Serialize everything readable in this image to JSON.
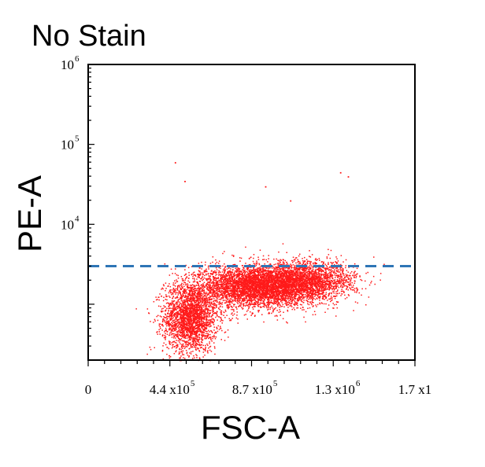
{
  "chart_data": {
    "type": "scatter",
    "title": "No Stain",
    "xlabel": "FSC-A",
    "ylabel": "PE-A",
    "xlim": [
      0,
      1700000
    ],
    "ylim": [
      200,
      1000000
    ],
    "yscale": "log",
    "x_ticks": [
      {
        "value": 0,
        "label": "0",
        "exp": ""
      },
      {
        "value": 440000,
        "label": "4.4 x10",
        "exp": "5"
      },
      {
        "value": 870000,
        "label": "8.7 x10",
        "exp": "5"
      },
      {
        "value": 1300000,
        "label": "1.3 x10",
        "exp": "6"
      },
      {
        "value": 1700000,
        "label": "1.7 x1",
        "exp": ""
      }
    ],
    "y_ticks": [
      {
        "value": 10000,
        "label": "10",
        "exp": "4"
      },
      {
        "value": 100000,
        "label": "10",
        "exp": "5"
      },
      {
        "value": 1000000,
        "label": "10",
        "exp": "6"
      }
    ],
    "threshold": {
      "y": 3000,
      "style": "dashed",
      "color": "#2e75b6"
    },
    "point_color": "#ff1a1a",
    "grid": false,
    "series": [
      {
        "point_count": 9000,
        "clusters": [
          {
            "x_center": 530000,
            "y_center": 700,
            "x_spread": 70000,
            "y_spread_log10": 0.22,
            "weight": 0.28
          },
          {
            "x_center": 880000,
            "y_center": 1700,
            "x_spread": 150000,
            "y_spread_log10": 0.13,
            "weight": 0.5
          },
          {
            "x_center": 1150000,
            "y_center": 2000,
            "x_spread": 120000,
            "y_spread_log10": 0.12,
            "weight": 0.22
          }
        ],
        "outliers": [
          {
            "x": 450000,
            "y": 60000
          },
          {
            "x": 1310000,
            "y": 45000
          },
          {
            "x": 1350000,
            "y": 40000
          },
          {
            "x": 920000,
            "y": 30000
          },
          {
            "x": 1050000,
            "y": 20000
          },
          {
            "x": 500000,
            "y": 35000
          }
        ]
      }
    ]
  }
}
